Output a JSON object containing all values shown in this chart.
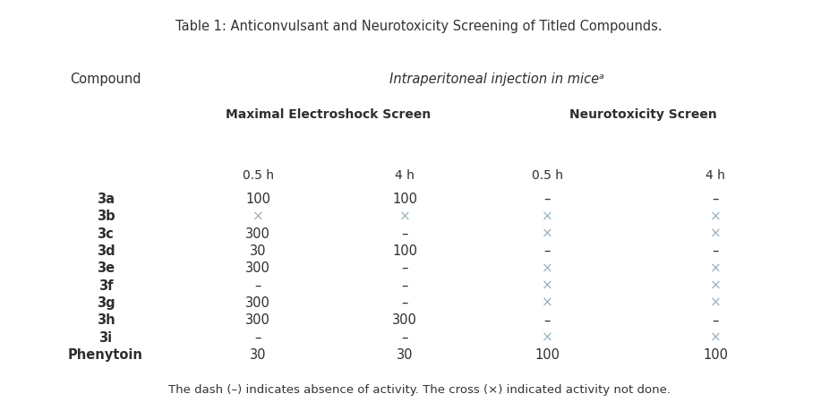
{
  "title": "Table 1: Anticonvulsant and Neurotoxicity Screening of Titled Compounds.",
  "footnote": "The dash (–) indicates absence of activity. The cross (×) indicated activity not done.",
  "intra_label": "Intraperitoneal injection in miceᵃ",
  "mes_label": "Maximal Electroshock Screen",
  "neuro_label": "Neurotoxicity Screen",
  "time_labels": [
    "0.5 h",
    "4 h",
    "0.5 h",
    "4 h"
  ],
  "compounds": [
    "3a",
    "3b",
    "3c",
    "3d",
    "3e",
    "3f",
    "3g",
    "3h",
    "3i",
    "Phenytoin"
  ],
  "data": [
    [
      "100",
      "100",
      "–",
      "–"
    ],
    [
      "×",
      "×",
      "×",
      "×"
    ],
    [
      "300",
      "–",
      "×",
      "×"
    ],
    [
      "30",
      "100",
      "–",
      "–"
    ],
    [
      "300",
      "–",
      "×",
      "×"
    ],
    [
      "–",
      "–",
      "×",
      "×"
    ],
    [
      "300",
      "–",
      "×",
      "×"
    ],
    [
      "300",
      "300",
      "–",
      "–"
    ],
    [
      "–",
      "–",
      "×",
      "×"
    ],
    [
      "30",
      "30",
      "100",
      "100"
    ]
  ],
  "table_bg": "#bfcedc",
  "data_bg_light": "#cdd9e5",
  "data_bg_dark": "#c5d2de",
  "text_color": "#2e2e2e",
  "cross_color": "#9ab0c0",
  "title_color": "#333333",
  "footnote_color": "#333333",
  "white_line": "#ffffff"
}
